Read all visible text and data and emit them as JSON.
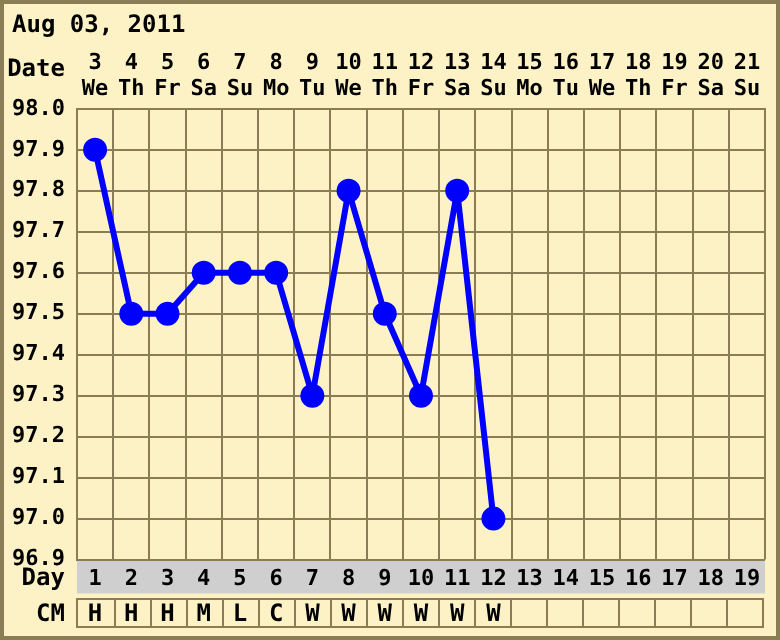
{
  "chart_data": {
    "type": "line",
    "title": "Aug 03, 2011",
    "xlabel": "Date",
    "x2label": "Day",
    "categories": [
      "3 We",
      "4 Th",
      "5 Fr",
      "6 Sa",
      "7 Su",
      "8 Mo",
      "9 Tu",
      "10 We",
      "11 Th",
      "12 Fr",
      "13 Sa",
      "14 Su",
      "15 Mo",
      "16 Tu",
      "17 We",
      "18 Th",
      "19 Fr",
      "20 Sa",
      "21 Su"
    ],
    "series": [
      {
        "color": "#0000ff",
        "values": [
          97.9,
          97.5,
          97.5,
          97.6,
          97.6,
          97.6,
          97.3,
          97.8,
          97.5,
          97.3,
          97.8,
          97.0,
          null,
          null,
          null,
          null,
          null,
          null,
          null
        ]
      }
    ],
    "ylim": [
      96.9,
      98.0
    ],
    "yticks": [
      96.9,
      {
        "value": 97,
        "label": "97.0"
      },
      97.1,
      97.2,
      97.3,
      97.4,
      97.5,
      97.6,
      97.7,
      97.8,
      97.9,
      {
        "value": 98,
        "label": "98.0"
      }
    ],
    "x2lim": [
      0.5,
      19.5
    ],
    "x2ticks": [
      1,
      2,
      3,
      4,
      5,
      6,
      7,
      8,
      9,
      10,
      11,
      12,
      13,
      14,
      15,
      16,
      17,
      18,
      19
    ],
    "annotations": [
      "CM",
      "H",
      "H",
      "H",
      "M",
      "L",
      "C",
      "W",
      "W",
      "W",
      "W",
      "W",
      "W"
    ],
    "grid": true,
    "legend": false,
    "marker": "circle",
    "line_style": "solid"
  }
}
